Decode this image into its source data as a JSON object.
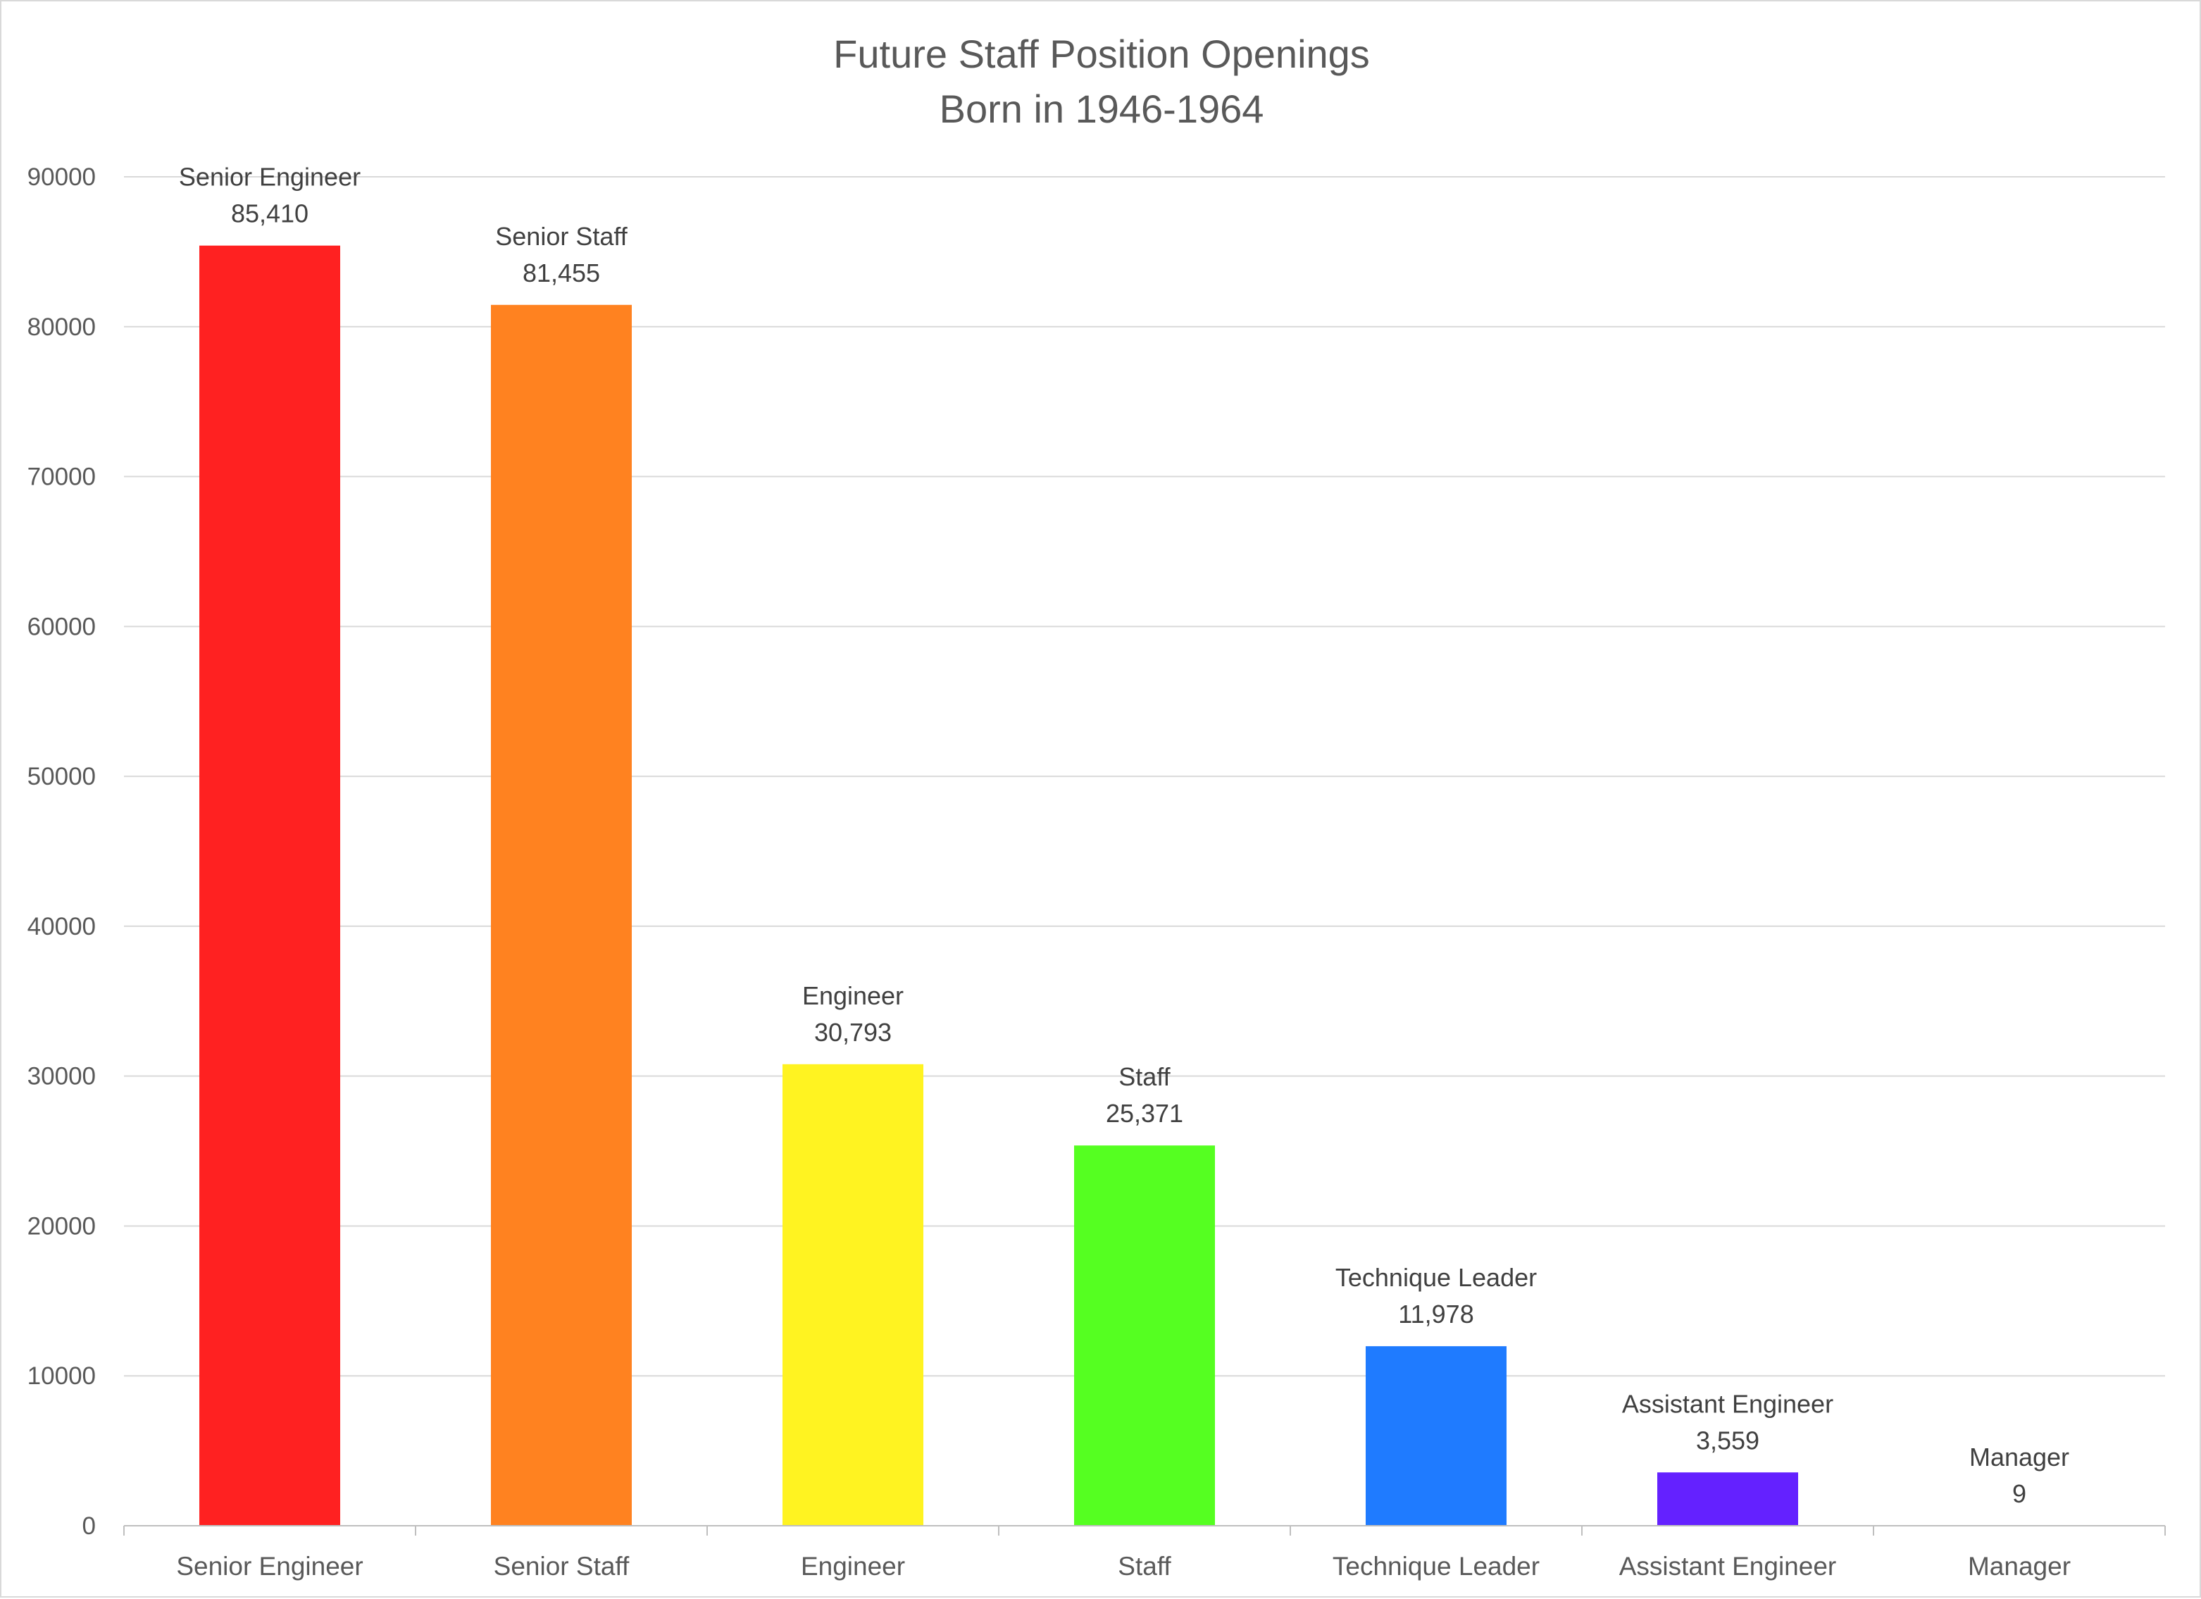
{
  "chart_data": {
    "type": "bar",
    "title": "Future Staff Position Openings",
    "subtitle": "Born in 1946-1964",
    "xlabel": "",
    "ylabel": "",
    "categories": [
      "Senior Engineer",
      "Senior Staff",
      "Engineer",
      "Staff",
      "Technique Leader",
      "Assistant Engineer",
      "Manager"
    ],
    "values": [
      85410,
      81455,
      30793,
      25371,
      11978,
      3559,
      9
    ],
    "data_labels": [
      "85,410",
      "81,455",
      "30,793",
      "25,371",
      "11,978",
      "3,559",
      "9"
    ],
    "colors": [
      "#ff2121",
      "#ff8220",
      "#fff321",
      "#55ff21",
      "#1f7bff",
      "#6421ff",
      "#c021ff"
    ],
    "ylim": [
      0,
      90000
    ],
    "yticks": [
      0,
      10000,
      20000,
      30000,
      40000,
      50000,
      60000,
      70000,
      80000,
      90000
    ],
    "ytick_labels": [
      "0",
      "10000",
      "20000",
      "30000",
      "40000",
      "50000",
      "60000",
      "70000",
      "80000",
      "90000"
    ],
    "grid": true,
    "legend": "none",
    "data_label_content": "category name and value above bar"
  }
}
